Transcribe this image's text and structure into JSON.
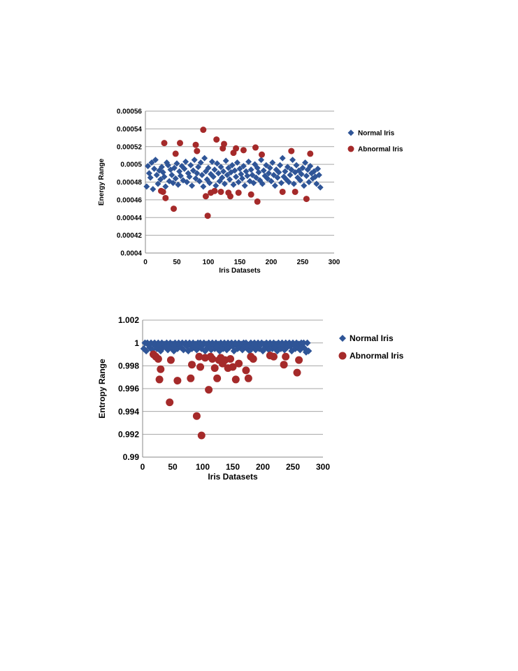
{
  "colors": {
    "normal": "#2F5597",
    "abnormal": "#A52A2A",
    "grid": "#A6A6A6"
  },
  "chart_data": [
    {
      "type": "scatter",
      "ylabel": "Energy Range",
      "xlabel": "Iris Datasets",
      "xlim": [
        0,
        300
      ],
      "ylim": [
        0.0004,
        0.00056
      ],
      "xticks": [
        "0",
        "50",
        "100",
        "150",
        "200",
        "250",
        "300"
      ],
      "yticks": [
        "0.0004",
        "0.00042",
        "0.00044",
        "0.00046",
        "0.00048",
        "0.0005",
        "0.00052",
        "0.00054",
        "0.00056"
      ],
      "grid": true,
      "legend_position": "right",
      "series": [
        {
          "name": "Normal Iris",
          "marker": "diamond",
          "x": [
            2,
            4,
            6,
            8,
            10,
            12,
            14,
            16,
            18,
            20,
            22,
            24,
            26,
            28,
            30,
            32,
            34,
            36,
            38,
            40,
            42,
            44,
            46,
            48,
            50,
            52,
            54,
            56,
            58,
            60,
            62,
            64,
            66,
            68,
            70,
            72,
            74,
            76,
            78,
            80,
            82,
            84,
            86,
            88,
            90,
            92,
            94,
            96,
            98,
            100,
            102,
            104,
            106,
            108,
            110,
            112,
            114,
            116,
            118,
            120,
            122,
            124,
            126,
            128,
            130,
            132,
            134,
            136,
            138,
            140,
            142,
            144,
            146,
            148,
            150,
            152,
            154,
            156,
            158,
            160,
            162,
            164,
            166,
            168,
            170,
            172,
            174,
            176,
            178,
            180,
            182,
            184,
            186,
            188,
            190,
            192,
            194,
            196,
            198,
            200,
            202,
            204,
            206,
            208,
            210,
            212,
            214,
            216,
            218,
            220,
            222,
            224,
            226,
            228,
            230,
            232,
            234,
            236,
            238,
            240,
            242,
            244,
            246,
            248,
            250,
            252,
            254,
            256,
            258,
            260,
            262,
            264,
            266,
            268,
            270,
            272,
            274,
            276,
            278
          ],
          "y": [
            0.000475,
            0.000498,
            0.00049,
            0.000485,
            0.000502,
            0.000472,
            0.000495,
            0.000505,
            0.000488,
            0.000478,
            0.000493,
            0.000483,
            0.000497,
            0.000491,
            0.000486,
            0.000475,
            0.000502,
            0.000499,
            0.000481,
            0.000494,
            0.000488,
            0.000479,
            0.000496,
            0.000484,
            0.000501,
            0.000477,
            0.000492,
            0.000487,
            0.000498,
            0.000482,
            0.000495,
            0.000503,
            0.00048,
            0.00049,
            0.000486,
            0.000499,
            0.000476,
            0.000493,
            0.000505,
            0.000484,
            0.00049,
            0.000497,
            0.000481,
            0.000502,
            0.000488,
            0.000475,
            0.000507,
            0.000492,
            0.000483,
            0.000496,
            0.000479,
            0.000489,
            0.000503,
            0.000486,
            0.000494,
            0.000476,
            0.000501,
            0.00049,
            0.000481,
            0.000497,
            0.000485,
            0.000492,
            0.000478,
            0.000504,
            0.000488,
            0.000496,
            0.000483,
            0.000491,
            0.000499,
            0.000477,
            0.000493,
            0.000486,
            0.000502,
            0.00048,
            0.000495,
            0.000489,
            0.000484,
            0.000498,
            0.000476,
            0.000492,
            0.000487,
            0.000503,
            0.000481,
            0.000494,
            0.000488,
            0.000479,
            0.0005,
            0.000485,
            0.000496,
            0.000491,
            0.000482,
            0.000505,
            0.000478,
            0.000493,
            0.000487,
            0.000499,
            0.000484,
            0.00049,
            0.000496,
            0.000481,
            0.000502,
            0.000488,
            0.000476,
            0.000494,
            0.000485,
            0.000491,
            0.000499,
            0.000479,
            0.000507,
            0.000486,
            0.000492,
            0.000483,
            0.000497,
            0.00048,
            0.000488,
            0.000494,
            0.000505,
            0.000478,
            0.000491,
            0.000499,
            0.000485,
            0.000493,
            0.000482,
            0.000489,
            0.000496,
            0.000476,
            0.000502,
            0.000487,
            0.000494,
            0.00048,
            0.000498,
            0.00049,
            0.000484,
            0.000492,
            0.000486,
            0.000478,
            0.000495,
            0.000488,
            0.000474
          ]
        },
        {
          "name": "Abnormal Iris",
          "marker": "circle",
          "x": [
            25,
            28,
            30,
            32,
            45,
            48,
            55,
            80,
            82,
            92,
            96,
            99,
            104,
            110,
            113,
            120,
            123,
            125,
            132,
            135,
            140,
            144,
            148,
            156,
            168,
            175,
            178,
            185,
            218,
            232,
            238,
            256,
            262
          ],
          "y": [
            0.00047,
            0.000469,
            0.000524,
            0.000462,
            0.00045,
            0.000512,
            0.000524,
            0.000522,
            0.000515,
            0.000539,
            0.000464,
            0.000442,
            0.000468,
            0.00047,
            0.000528,
            0.000469,
            0.000518,
            0.000523,
            0.000468,
            0.000464,
            0.000513,
            0.000518,
            0.000468,
            0.000516,
            0.000466,
            0.000519,
            0.000458,
            0.000511,
            0.000469,
            0.000515,
            0.000469,
            0.000461,
            0.000512
          ]
        }
      ]
    },
    {
      "type": "scatter",
      "ylabel": "Entropy Range",
      "xlabel": "Iris Datasets",
      "xlim": [
        0,
        300
      ],
      "ylim": [
        0.99,
        1.002
      ],
      "xticks": [
        "0",
        "50",
        "100",
        "150",
        "200",
        "250",
        "300"
      ],
      "yticks": [
        "0.99",
        "0.992",
        "0.994",
        "0.996",
        "0.998",
        "1",
        "1.002"
      ],
      "grid": true,
      "legend_position": "right",
      "series": [
        {
          "name": "Normal Iris",
          "marker": "diamond",
          "x": [
            2,
            4,
            6,
            8,
            10,
            12,
            14,
            16,
            18,
            20,
            22,
            24,
            26,
            28,
            30,
            32,
            34,
            36,
            38,
            40,
            42,
            44,
            46,
            48,
            50,
            52,
            54,
            56,
            58,
            60,
            62,
            64,
            66,
            68,
            70,
            72,
            74,
            76,
            78,
            80,
            82,
            84,
            86,
            88,
            90,
            92,
            94,
            96,
            98,
            100,
            102,
            104,
            106,
            108,
            110,
            112,
            114,
            116,
            118,
            120,
            122,
            124,
            126,
            128,
            130,
            132,
            134,
            136,
            138,
            140,
            142,
            144,
            146,
            148,
            150,
            152,
            154,
            156,
            158,
            160,
            162,
            164,
            166,
            168,
            170,
            172,
            174,
            176,
            178,
            180,
            182,
            184,
            186,
            188,
            190,
            192,
            194,
            196,
            198,
            200,
            202,
            204,
            206,
            208,
            210,
            212,
            214,
            216,
            218,
            220,
            222,
            224,
            226,
            228,
            230,
            232,
            234,
            236,
            238,
            240,
            242,
            244,
            246,
            248,
            250,
            252,
            254,
            256,
            258,
            260,
            262,
            264,
            266,
            268,
            270,
            272,
            274,
            276
          ],
          "y": [
            0.9995,
            1.0,
            0.9993,
            1.0,
            0.9998,
            0.9996,
            1.0,
            0.9994,
            0.9999,
            1.0,
            0.9997,
            0.9995,
            1.0,
            0.9998,
            0.9993,
            1.0,
            0.9996,
            0.9999,
            0.9997,
            1.0,
            0.9994,
            0.9998,
            1.0,
            0.9996,
            0.9999,
            0.9993,
            1.0,
            0.9997,
            0.9995,
            1.0,
            0.9998,
            0.9996,
            1.0,
            0.9994,
            0.9999,
            1.0,
            0.9997,
            0.9993,
            1.0,
            0.9998,
            0.9995,
            1.0,
            0.9996,
            0.9999,
            0.9994,
            1.0,
            0.9997,
            1.0,
            0.9995,
            0.9998,
            1.0,
            0.9993,
            0.9999,
            0.9996,
            1.0,
            0.9997,
            0.9994,
            1.0,
            0.9998,
            0.9995,
            1.0,
            0.9996,
            0.9999,
            0.9993,
            1.0,
            0.9997,
            0.9995,
            1.0,
            0.9998,
            0.9994,
            1.0,
            0.9996,
            0.9999,
            1.0,
            0.9997,
            0.9993,
            1.0,
            0.9998,
            0.9995,
            1.0,
            0.9996,
            0.9999,
            0.9994,
            1.0,
            0.9997,
            1.0,
            0.9995,
            0.9998,
            0.9993,
            1.0,
            0.9996,
            0.9999,
            1.0,
            0.9994,
            0.9997,
            1.0,
            0.9995,
            0.9998,
            1.0,
            0.9993,
            0.9999,
            0.9996,
            1.0,
            0.9997,
            0.9994,
            1.0,
            0.9998,
            0.9995,
            1.0,
            0.9996,
            0.9999,
            0.9993,
            1.0,
            0.9997,
            0.9995,
            1.0,
            0.9998,
            0.9994,
            1.0,
            0.9996,
            0.9999,
            1.0,
            0.9997,
            0.9993,
            1.0,
            0.9998,
            0.9995,
            1.0,
            0.9996,
            0.9999,
            0.9994,
            1.0,
            0.9997,
            1.0,
            0.9995,
            0.9992,
            1.0,
            0.9993
          ]
        },
        {
          "name": "Abnormal Iris",
          "marker": "circle",
          "x": [
            18,
            22,
            26,
            28,
            30,
            45,
            47,
            58,
            80,
            82,
            90,
            94,
            96,
            98,
            104,
            110,
            113,
            116,
            120,
            124,
            127,
            130,
            133,
            137,
            142,
            146,
            150,
            155,
            160,
            172,
            176,
            180,
            184,
            212,
            218,
            235,
            238,
            257,
            260
          ],
          "y": [
            0.999,
            0.9988,
            0.9986,
            0.9968,
            0.9977,
            0.9948,
            0.9985,
            0.9967,
            0.9969,
            0.9981,
            0.9936,
            0.9988,
            0.9979,
            0.9919,
            0.9987,
            0.9959,
            0.9988,
            0.9986,
            0.9978,
            0.9969,
            0.9985,
            0.9987,
            0.9982,
            0.9985,
            0.9978,
            0.9986,
            0.9979,
            0.9968,
            0.9982,
            0.9976,
            0.9969,
            0.9988,
            0.9986,
            0.9989,
            0.9988,
            0.9981,
            0.9988,
            0.9974,
            0.9985
          ]
        }
      ]
    }
  ]
}
